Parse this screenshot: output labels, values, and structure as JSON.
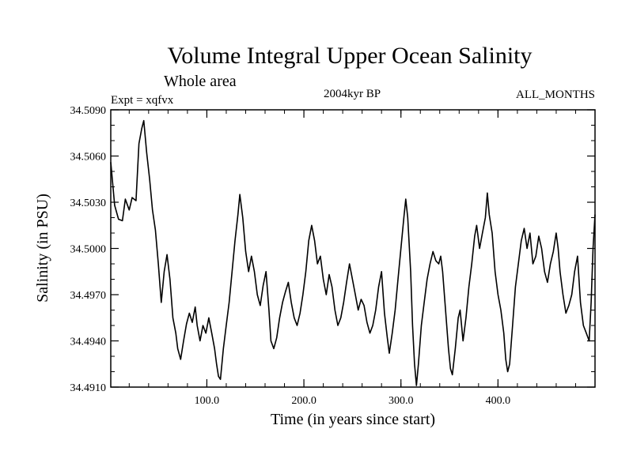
{
  "title": "Volume Integral Upper Ocean Salinity",
  "subtitle": "Whole area",
  "experiment": "Expt = xqfvx",
  "period": "2004kyr BP",
  "months": "ALL_MONTHS",
  "chart_data": {
    "type": "line",
    "title": "Volume Integral Upper Ocean Salinity",
    "xlabel": "Time (in years since start)",
    "ylabel": "Salinity (in PSU)",
    "xlim": [
      1,
      500
    ],
    "ylim": [
      34.491,
      34.509
    ],
    "x_ticks": [
      100,
      200,
      300,
      400
    ],
    "x_tick_labels": [
      "100.0",
      "200.0",
      "300.0",
      "400.0"
    ],
    "y_ticks": [
      34.491,
      34.494,
      34.497,
      34.5,
      34.503,
      34.506,
      34.509
    ],
    "y_tick_labels": [
      "34.4910",
      "34.4940",
      "34.4970",
      "34.5000",
      "34.5030",
      "34.5060",
      "34.5090"
    ],
    "grid": false,
    "series": [
      {
        "name": "Salinity",
        "points": [
          [
            1,
            34.5056
          ],
          [
            5,
            34.5028
          ],
          [
            9,
            34.5019
          ],
          [
            13,
            34.5018
          ],
          [
            16,
            34.5032
          ],
          [
            20,
            34.5025
          ],
          [
            23,
            34.5033
          ],
          [
            27,
            34.5031
          ],
          [
            30,
            34.5068
          ],
          [
            33,
            34.5078
          ],
          [
            35,
            34.5083
          ],
          [
            38,
            34.5062
          ],
          [
            41,
            34.5045
          ],
          [
            44,
            34.5025
          ],
          [
            47,
            34.5012
          ],
          [
            50,
            34.499
          ],
          [
            53,
            34.4965
          ],
          [
            56,
            34.4985
          ],
          [
            59,
            34.4996
          ],
          [
            62,
            34.498
          ],
          [
            65,
            34.4955
          ],
          [
            68,
            34.4945
          ],
          [
            70,
            34.4935
          ],
          [
            73,
            34.4928
          ],
          [
            76,
            34.494
          ],
          [
            79,
            34.4951
          ],
          [
            82,
            34.4958
          ],
          [
            85,
            34.4952
          ],
          [
            88,
            34.4962
          ],
          [
            90,
            34.495
          ],
          [
            93,
            34.494
          ],
          [
            96,
            34.495
          ],
          [
            99,
            34.4945
          ],
          [
            102,
            34.4955
          ],
          [
            105,
            34.4945
          ],
          [
            108,
            34.4935
          ],
          [
            110,
            34.4925
          ],
          [
            112,
            34.4917
          ],
          [
            114,
            34.4915
          ],
          [
            117,
            34.4935
          ],
          [
            120,
            34.495
          ],
          [
            123,
            34.4965
          ],
          [
            126,
            34.4985
          ],
          [
            129,
            34.5005
          ],
          [
            132,
            34.5022
          ],
          [
            134,
            34.5035
          ],
          [
            137,
            34.502
          ],
          [
            140,
            34.4998
          ],
          [
            143,
            34.4985
          ],
          [
            146,
            34.4995
          ],
          [
            149,
            34.4985
          ],
          [
            152,
            34.497
          ],
          [
            155,
            34.4963
          ],
          [
            158,
            34.4976
          ],
          [
            161,
            34.4985
          ],
          [
            164,
            34.496
          ],
          [
            166,
            34.494
          ],
          [
            169,
            34.4935
          ],
          [
            172,
            34.4942
          ],
          [
            175,
            34.4955
          ],
          [
            178,
            34.4965
          ],
          [
            181,
            34.4972
          ],
          [
            184,
            34.4978
          ],
          [
            187,
            34.4965
          ],
          [
            190,
            34.4955
          ],
          [
            193,
            34.495
          ],
          [
            196,
            34.4958
          ],
          [
            199,
            34.497
          ],
          [
            202,
            34.4985
          ],
          [
            205,
            34.5005
          ],
          [
            208,
            34.5015
          ],
          [
            211,
            34.5005
          ],
          [
            214,
            34.499
          ],
          [
            217,
            34.4995
          ],
          [
            220,
            34.498
          ],
          [
            223,
            34.497
          ],
          [
            226,
            34.4983
          ],
          [
            229,
            34.4975
          ],
          [
            232,
            34.496
          ],
          [
            235,
            34.495
          ],
          [
            238,
            34.4955
          ],
          [
            241,
            34.4965
          ],
          [
            244,
            34.4978
          ],
          [
            247,
            34.499
          ],
          [
            250,
            34.498
          ],
          [
            253,
            34.497
          ],
          [
            256,
            34.496
          ],
          [
            259,
            34.4967
          ],
          [
            262,
            34.4963
          ],
          [
            265,
            34.4952
          ],
          [
            268,
            34.4945
          ],
          [
            271,
            34.495
          ],
          [
            274,
            34.496
          ],
          [
            277,
            34.4975
          ],
          [
            280,
            34.4985
          ],
          [
            283,
            34.4958
          ],
          [
            286,
            34.4942
          ],
          [
            288,
            34.4932
          ],
          [
            291,
            34.4945
          ],
          [
            294,
            34.496
          ],
          [
            297,
            34.498
          ],
          [
            300,
            34.5
          ],
          [
            303,
            34.502
          ],
          [
            305,
            34.5032
          ],
          [
            307,
            34.502
          ],
          [
            310,
            34.4985
          ],
          [
            312,
            34.495
          ],
          [
            314,
            34.4925
          ],
          [
            316,
            34.4911
          ],
          [
            318,
            34.4925
          ],
          [
            321,
            34.495
          ],
          [
            324,
            34.4965
          ],
          [
            327,
            34.498
          ],
          [
            330,
            34.499
          ],
          [
            333,
            34.4998
          ],
          [
            336,
            34.4992
          ],
          [
            339,
            34.499
          ],
          [
            341,
            34.4995
          ],
          [
            343,
            34.4985
          ],
          [
            346,
            34.496
          ],
          [
            349,
            34.4935
          ],
          [
            351,
            34.4922
          ],
          [
            353,
            34.4918
          ],
          [
            356,
            34.4935
          ],
          [
            359,
            34.4955
          ],
          [
            361,
            34.496
          ],
          [
            364,
            34.494
          ],
          [
            367,
            34.4955
          ],
          [
            370,
            34.4975
          ],
          [
            373,
            34.499
          ],
          [
            376,
            34.5008
          ],
          [
            378,
            34.5015
          ],
          [
            381,
            34.5
          ],
          [
            384,
            34.501
          ],
          [
            387,
            34.502
          ],
          [
            389,
            34.5036
          ],
          [
            391,
            34.5022
          ],
          [
            394,
            34.501
          ],
          [
            397,
            34.4985
          ],
          [
            400,
            34.497
          ],
          [
            403,
            34.496
          ],
          [
            406,
            34.4945
          ],
          [
            408,
            34.4928
          ],
          [
            410,
            34.492
          ],
          [
            412,
            34.4925
          ],
          [
            415,
            34.495
          ],
          [
            418,
            34.4975
          ],
          [
            421,
            34.499
          ],
          [
            424,
            34.5005
          ],
          [
            427,
            34.5013
          ],
          [
            430,
            34.5
          ],
          [
            433,
            34.501
          ],
          [
            436,
            34.499
          ],
          [
            439,
            34.4995
          ],
          [
            442,
            34.5008
          ],
          [
            445,
            34.5
          ],
          [
            448,
            34.4985
          ],
          [
            451,
            34.4978
          ],
          [
            454,
            34.499
          ],
          [
            457,
            34.4998
          ],
          [
            460,
            34.501
          ],
          [
            462,
            34.5
          ],
          [
            464,
            34.4985
          ],
          [
            467,
            34.497
          ],
          [
            470,
            34.4958
          ],
          [
            473,
            34.4963
          ],
          [
            476,
            34.497
          ],
          [
            479,
            34.4985
          ],
          [
            482,
            34.4995
          ],
          [
            485,
            34.4965
          ],
          [
            488,
            34.495
          ],
          [
            491,
            34.4945
          ],
          [
            494,
            34.494
          ],
          [
            496,
            34.4965
          ],
          [
            498,
            34.5
          ],
          [
            500,
            34.5022
          ]
        ]
      }
    ]
  }
}
